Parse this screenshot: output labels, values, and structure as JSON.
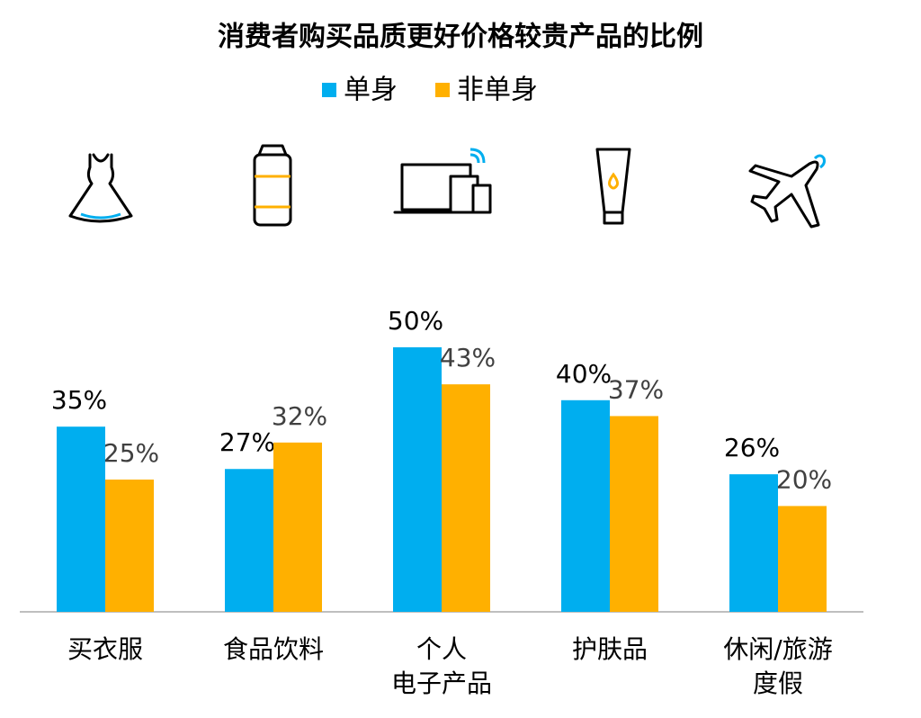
{
  "chart_data": {
    "type": "bar",
    "title": "消费者购买品质更好价格较贵产品的比例",
    "categories": [
      "买衣服",
      "食品饮料",
      "个人\n电子产品",
      "护肤品",
      "休闲/旅游\n度假"
    ],
    "series": [
      {
        "name": "单身",
        "color": "#00aeef",
        "values": [
          35,
          27,
          50,
          40,
          26
        ],
        "value_labels": [
          "35%",
          "27%",
          "50%",
          "40%",
          "26%"
        ]
      },
      {
        "name": "非单身",
        "color": "#ffb000",
        "values": [
          25,
          32,
          43,
          37,
          20
        ],
        "value_labels": [
          "25%",
          "32%",
          "43%",
          "37%",
          "20%"
        ]
      }
    ]
  }
}
